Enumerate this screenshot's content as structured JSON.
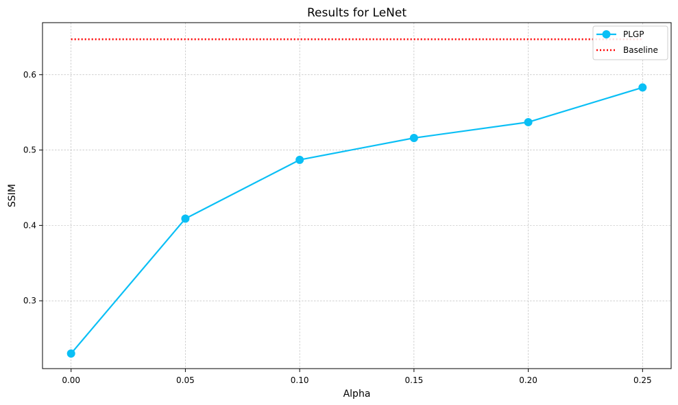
{
  "chart_data": {
    "type": "line",
    "title": "Results for LeNet",
    "xlabel": "Alpha",
    "ylabel": "SSIM",
    "x": [
      0.0,
      0.05,
      0.1,
      0.15,
      0.2,
      0.25
    ],
    "xticks": [
      "0.00",
      "0.05",
      "0.10",
      "0.15",
      "0.20",
      "0.25"
    ],
    "yticks": [
      "0.3",
      "0.4",
      "0.5",
      "0.6"
    ],
    "ytick_values": [
      0.3,
      0.4,
      0.5,
      0.6
    ],
    "xlim": [
      -0.0125,
      0.2625
    ],
    "ylim": [
      0.21,
      0.669
    ],
    "grid": true,
    "legend_position": "top-right",
    "series": [
      {
        "name": "PLGP",
        "style": "solid-line-with-circle-markers",
        "color": "#0ABFF5",
        "values": [
          0.23,
          0.409,
          0.487,
          0.516,
          0.537,
          0.583
        ]
      },
      {
        "name": "Baseline",
        "style": "dotted-line",
        "color": "#FF0000",
        "values": [
          0.647,
          0.647,
          0.647,
          0.647,
          0.647,
          0.647
        ]
      }
    ]
  }
}
